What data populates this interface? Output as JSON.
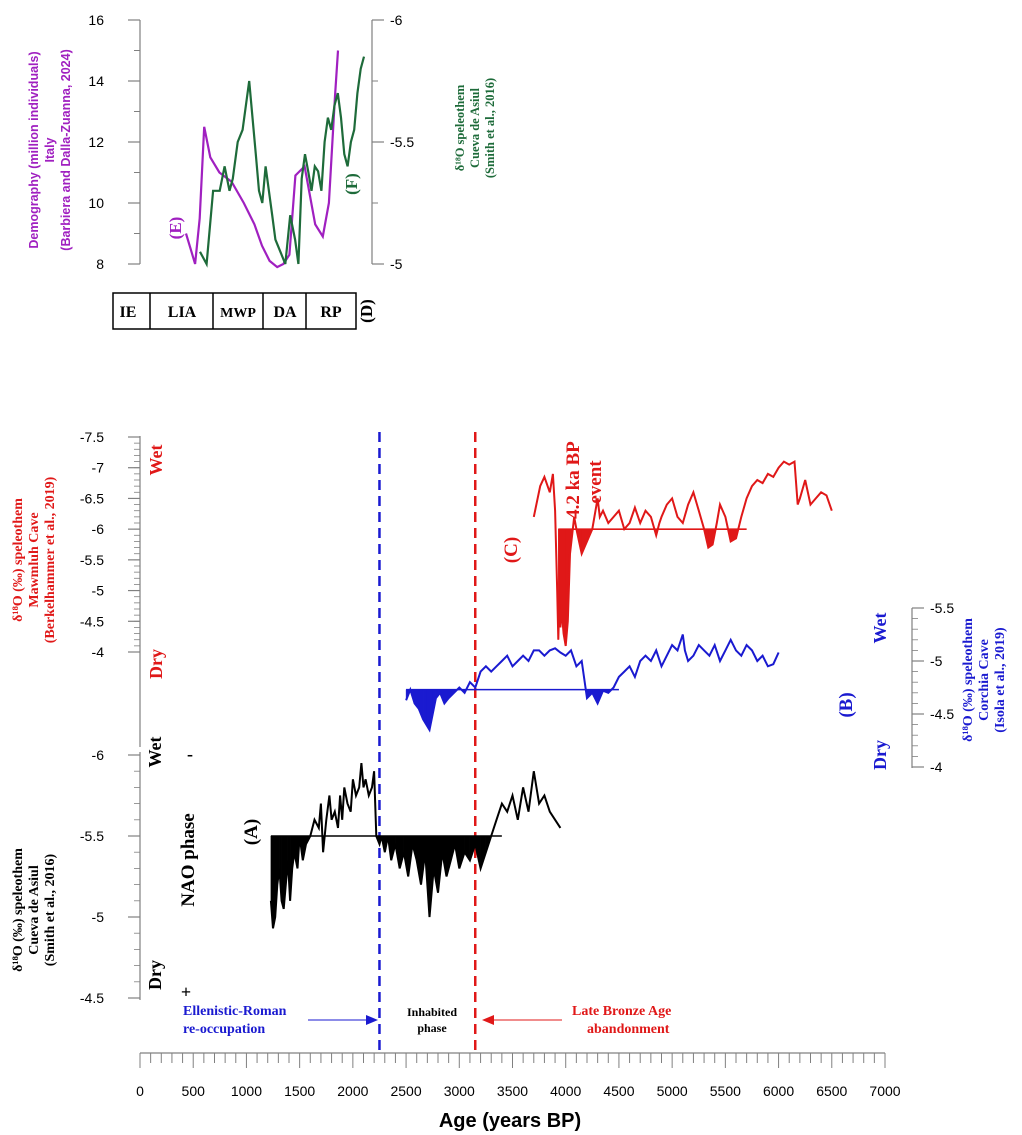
{
  "colors": {
    "purple": "#a020c0",
    "green": "#1e6b3a",
    "red": "#e01818",
    "blue": "#1a1ad0",
    "black": "#000000",
    "axis": "#808080"
  },
  "top_panel": {
    "left_axis_title": [
      "Demography (million individuals)",
      "Italy",
      "(Barbiera and Dalla-Zuanna, 2024)"
    ],
    "right_axis_title": [
      "δ¹⁸O speleothem",
      "Cueva de Asiul",
      "(Smith et al., 2016)"
    ],
    "label_E": "(E)",
    "label_F": "(F)",
    "label_D": "(D)",
    "periods": [
      "IE",
      "LIA",
      "MWP",
      "DA",
      "RP"
    ]
  },
  "main_panel": {
    "x_axis_title": "Age (years BP)",
    "red_title": [
      "δ¹⁸O (‰) speleothem",
      "Mawmluh Cave",
      "(Berkelhammer et al., 2019)"
    ],
    "red_wet": "Wet",
    "red_dry": "Dry",
    "label_C": "(C)",
    "event_line1": "4.2 ka BP",
    "event_line2": "event",
    "blue_title": [
      "δ¹⁸O (‰) speleothem",
      "Corchia Cave",
      "(Isola et al., 2019)"
    ],
    "blue_wet": "Wet",
    "blue_dry": "Dry",
    "label_B": "(B)",
    "black_title": [
      "δ¹⁸O (‰) speleothem",
      "Cueva de Asiul",
      "(Smith et al., 2016)"
    ],
    "black_wet": "Wet",
    "black_dry": "Dry",
    "nao_phase": "NAO phase",
    "nao_minus": "-",
    "nao_plus": "+",
    "label_A": "(A)",
    "annotation_roman": [
      "Ellenistic-Roman",
      "re-occupation"
    ],
    "annotation_inhabited": [
      "Inhabited",
      "phase"
    ],
    "annotation_bronze": [
      "Late Bronze Age",
      "abandonment"
    ]
  },
  "chart_data": [
    {
      "type": "line",
      "panel": "top",
      "left_ylim": [
        7.6,
        16
      ],
      "right_ylim": [
        -5,
        -6
      ],
      "left_yticks": [
        8,
        10,
        12,
        14,
        16
      ],
      "right_yticks": [
        -5,
        -5.5,
        -6
      ],
      "series": [
        {
          "name": "(E)",
          "axis": "left",
          "color": "purple",
          "t": [
            0.0,
            0.03,
            0.06,
            0.09,
            0.12,
            0.16,
            0.22,
            0.3,
            0.38,
            0.45,
            0.5,
            0.55,
            0.6,
            0.64,
            0.68,
            0.72,
            0.78,
            0.85,
            0.9,
            0.94,
            0.98,
            1.0
          ],
          "values": [
            9.0,
            8.5,
            8.0,
            9.5,
            12.5,
            11.5,
            11.0,
            10.7,
            10.0,
            9.3,
            8.6,
            8.1,
            7.9,
            8.0,
            8.3,
            10.9,
            11.2,
            9.3,
            8.9,
            10.0,
            13.5,
            15.0
          ]
        },
        {
          "name": "(F)",
          "axis": "right",
          "color": "green",
          "t": [
            0.0,
            0.04,
            0.08,
            0.12,
            0.15,
            0.18,
            0.2,
            0.23,
            0.26,
            0.28,
            0.3,
            0.32,
            0.34,
            0.36,
            0.38,
            0.4,
            0.42,
            0.44,
            0.46,
            0.49,
            0.52,
            0.55,
            0.58,
            0.6,
            0.62,
            0.64,
            0.66,
            0.68,
            0.7,
            0.72,
            0.74,
            0.76,
            0.78,
            0.8,
            0.82,
            0.84,
            0.86,
            0.88,
            0.9,
            0.92,
            0.94,
            0.96,
            0.98,
            1.0
          ],
          "values": [
            -5.05,
            -5.0,
            -5.3,
            -5.3,
            -5.4,
            -5.3,
            -5.35,
            -5.5,
            -5.55,
            -5.65,
            -5.75,
            -5.6,
            -5.45,
            -5.3,
            -5.25,
            -5.4,
            -5.3,
            -5.2,
            -5.1,
            -5.05,
            -5.0,
            -5.2,
            -5.1,
            -5.0,
            -5.35,
            -5.45,
            -5.38,
            -5.3,
            -5.4,
            -5.38,
            -5.3,
            -5.5,
            -5.6,
            -5.55,
            -5.65,
            -5.7,
            -5.6,
            -5.45,
            -5.4,
            -5.5,
            -5.55,
            -5.7,
            -5.8,
            -5.85
          ]
        }
      ]
    },
    {
      "type": "area",
      "panel": "main",
      "xlabel": "Age (years BP)",
      "xlim": [
        0,
        7000
      ],
      "xticks": [
        0,
        500,
        1000,
        1500,
        2000,
        2500,
        3000,
        3500,
        4000,
        4500,
        5000,
        5500,
        6000,
        6500,
        7000
      ],
      "vlines": [
        {
          "x": 2250,
          "color": "blue"
        },
        {
          "x": 3150,
          "color": "red"
        }
      ],
      "series": [
        {
          "name": "(C)",
          "color": "red",
          "ylim": [
            -3.5,
            -7.5
          ],
          "yticks": [
            -4,
            -4.5,
            -5,
            -5.5,
            -6,
            -6.5,
            -7,
            -7.5
          ],
          "fill_threshold": -6.0,
          "x": [
            3700,
            3760,
            3800,
            3850,
            3880,
            3900,
            3920,
            3930,
            3940,
            3950,
            3960,
            3980,
            4000,
            4020,
            4040,
            4060,
            4080,
            4100,
            4150,
            4200,
            4250,
            4300,
            4320,
            4350,
            4400,
            4450,
            4500,
            4550,
            4600,
            4650,
            4700,
            4750,
            4800,
            4850,
            4880,
            4900,
            4950,
            5000,
            5050,
            5100,
            5150,
            5200,
            5250,
            5300,
            5340,
            5380,
            5420,
            5450,
            5500,
            5550,
            5600,
            5650,
            5700,
            5750,
            5800,
            5850,
            5900,
            5950,
            6000,
            6050,
            6100,
            6150,
            6180,
            6200,
            6250,
            6300,
            6350,
            6400,
            6450,
            6500
          ],
          "values": [
            -6.2,
            -6.7,
            -6.85,
            -6.6,
            -6.9,
            -6.3,
            -5.0,
            -4.2,
            -4.8,
            -4.4,
            -4.7,
            -4.3,
            -4.1,
            -4.5,
            -5.6,
            -5.9,
            -6.2,
            -6.0,
            -5.6,
            -5.8,
            -6.0,
            -6.5,
            -6.2,
            -6.3,
            -6.1,
            -6.2,
            -6.3,
            -6.0,
            -6.1,
            -6.35,
            -6.1,
            -6.3,
            -6.2,
            -5.9,
            -6.1,
            -6.2,
            -6.4,
            -6.5,
            -6.2,
            -6.1,
            -6.4,
            -6.6,
            -6.3,
            -6.0,
            -5.7,
            -5.75,
            -6.1,
            -6.4,
            -6.2,
            -5.8,
            -5.85,
            -6.2,
            -6.5,
            -6.7,
            -6.8,
            -6.75,
            -6.9,
            -6.85,
            -7.0,
            -7.1,
            -7.05,
            -7.1,
            -6.4,
            -6.5,
            -6.8,
            -6.4,
            -6.5,
            -6.6,
            -6.55,
            -6.3
          ]
        },
        {
          "name": "(B)",
          "color": "blue",
          "ylim": [
            -4,
            -5.5
          ],
          "yticks": [
            -4,
            -4.5,
            -5,
            -5.5
          ],
          "fill_threshold": -4.73,
          "x": [
            2500,
            2540,
            2580,
            2620,
            2660,
            2690,
            2720,
            2750,
            2780,
            2820,
            2860,
            2900,
            2950,
            3000,
            3050,
            3100,
            3150,
            3200,
            3250,
            3300,
            3350,
            3400,
            3450,
            3500,
            3550,
            3600,
            3650,
            3700,
            3750,
            3800,
            3850,
            3900,
            3950,
            4000,
            4050,
            4100,
            4150,
            4200,
            4250,
            4300,
            4350,
            4400,
            4450,
            4500,
            4550,
            4600,
            4650,
            4700,
            4750,
            4800,
            4850,
            4900,
            4950,
            5000,
            5050,
            5100,
            5120,
            5150,
            5200,
            5250,
            5300,
            5350,
            5400,
            5450,
            5500,
            5550,
            5600,
            5650,
            5700,
            5750,
            5800,
            5850,
            5900,
            5950,
            6000
          ],
          "values": [
            -4.63,
            -4.73,
            -4.6,
            -4.55,
            -4.45,
            -4.4,
            -4.35,
            -4.5,
            -4.65,
            -4.7,
            -4.6,
            -4.65,
            -4.7,
            -4.75,
            -4.7,
            -4.8,
            -4.75,
            -4.9,
            -4.95,
            -4.9,
            -4.95,
            -5.0,
            -5.05,
            -4.95,
            -5.0,
            -5.05,
            -5.0,
            -5.1,
            -5.1,
            -5.05,
            -5.1,
            -5.12,
            -5.08,
            -5.05,
            -5.1,
            -4.95,
            -5.0,
            -4.65,
            -4.7,
            -4.6,
            -4.72,
            -4.7,
            -4.75,
            -4.85,
            -4.9,
            -4.95,
            -4.85,
            -5.0,
            -5.05,
            -5.0,
            -5.1,
            -4.95,
            -5.05,
            -5.15,
            -5.1,
            -5.25,
            -5.1,
            -5.0,
            -5.05,
            -5.15,
            -5.1,
            -5.05,
            -5.15,
            -5.0,
            -5.1,
            -5.2,
            -5.1,
            -5.05,
            -5.15,
            -5.1,
            -5.0,
            -5.05,
            -4.95,
            -4.97,
            -5.08
          ]
        },
        {
          "name": "(A)",
          "color": "black",
          "ylim": [
            -4.5,
            -6.2
          ],
          "yticks": [
            -4.5,
            -5,
            -5.5,
            -6
          ],
          "fill_threshold": -5.5,
          "x": [
            1230,
            1250,
            1270,
            1290,
            1310,
            1330,
            1350,
            1370,
            1390,
            1410,
            1430,
            1450,
            1480,
            1500,
            1530,
            1560,
            1600,
            1640,
            1680,
            1700,
            1720,
            1750,
            1780,
            1800,
            1830,
            1860,
            1880,
            1900,
            1920,
            1950,
            1980,
            2000,
            2030,
            2060,
            2080,
            2100,
            2120,
            2150,
            2180,
            2200,
            2220,
            2250,
            2270,
            2300,
            2330,
            2360,
            2400,
            2440,
            2480,
            2520,
            2560,
            2600,
            2640,
            2680,
            2720,
            2760,
            2800,
            2840,
            2880,
            2920,
            2960,
            3000,
            3050,
            3100,
            3150,
            3200,
            3250,
            3300,
            3350,
            3400,
            3450,
            3500,
            3550,
            3600,
            3650,
            3700,
            3750,
            3800,
            3850,
            3900,
            3950
          ],
          "values": [
            -5.1,
            -4.93,
            -5.0,
            -5.2,
            -5.3,
            -5.1,
            -5.05,
            -5.2,
            -5.35,
            -5.1,
            -5.3,
            -5.4,
            -5.3,
            -5.5,
            -5.35,
            -5.45,
            -5.5,
            -5.6,
            -5.55,
            -5.7,
            -5.4,
            -5.6,
            -5.75,
            -5.6,
            -5.65,
            -5.55,
            -5.75,
            -5.6,
            -5.8,
            -5.7,
            -5.65,
            -5.85,
            -5.75,
            -5.8,
            -5.95,
            -5.8,
            -5.85,
            -5.75,
            -5.8,
            -5.9,
            -5.5,
            -5.45,
            -5.5,
            -5.4,
            -5.5,
            -5.35,
            -5.45,
            -5.3,
            -5.4,
            -5.25,
            -5.45,
            -5.35,
            -5.2,
            -5.4,
            -5.0,
            -5.3,
            -5.15,
            -5.4,
            -5.25,
            -5.35,
            -5.45,
            -5.3,
            -5.4,
            -5.35,
            -5.45,
            -5.3,
            -5.4,
            -5.5,
            -5.6,
            -5.7,
            -5.65,
            -5.75,
            -5.6,
            -5.8,
            -5.65,
            -5.9,
            -5.7,
            -5.75,
            -5.65,
            -5.6,
            -5.55
          ]
        }
      ]
    }
  ]
}
